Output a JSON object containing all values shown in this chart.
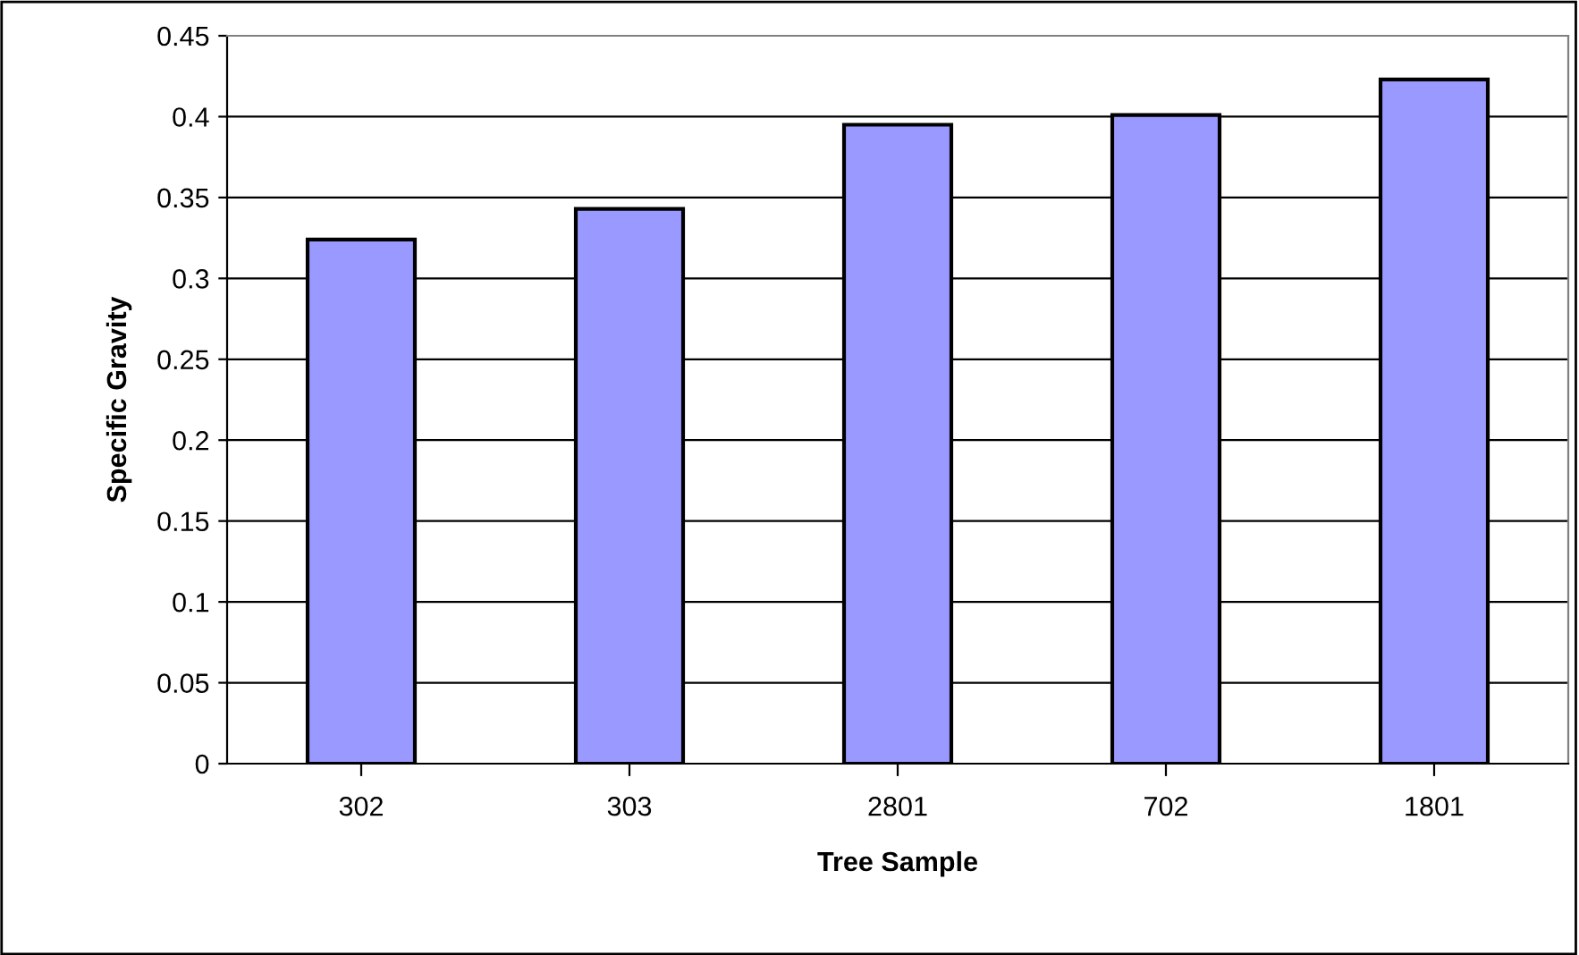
{
  "chart_data": {
    "type": "bar",
    "xlabel": "Tree Sample",
    "ylabel": "Specific Gravity",
    "categories": [
      "302",
      "303",
      "2801",
      "702",
      "1801"
    ],
    "values": [
      0.324,
      0.343,
      0.395,
      0.401,
      0.423
    ],
    "color": "#9999ff",
    "ylim": [
      0,
      0.45
    ],
    "yticks": [
      0,
      0.05,
      0.1,
      0.15,
      0.2,
      0.25,
      0.3,
      0.35,
      0.4,
      0.45
    ],
    "grid": "y"
  }
}
